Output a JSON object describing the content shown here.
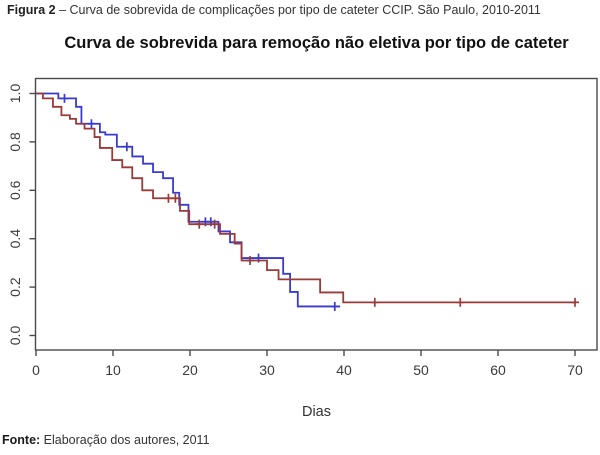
{
  "figure_caption": {
    "prefix": "Figura 2",
    "text": " – Curva de sobrevida de complicações por tipo de cateter CCIP. São Paulo, 2010-2011"
  },
  "footer": {
    "prefix": "Fonte:",
    "text": " Elaboração dos autores, 2011"
  },
  "chart_data": {
    "type": "line",
    "subtype": "kaplan-meier-step-survival",
    "title": "Curva de sobrevida para remoção não eletiva por tipo de cateter",
    "xlabel": "Dias",
    "ylabel": "",
    "xlim": [
      0,
      72.5
    ],
    "ylim": [
      0,
      1.0
    ],
    "x_ticks": [
      0,
      10,
      20,
      30,
      40,
      50,
      60,
      70
    ],
    "y_tick_labels": [
      "0.0",
      "0.2",
      "0.4",
      "0.6",
      "0.8",
      "1.0"
    ],
    "grid": false,
    "legend_position": "none",
    "axis_color": "#4a4a4a",
    "tick_label_color": "#3a3a3a",
    "series": [
      {
        "name": "cateter-curva-azul",
        "color": "#3a3ad0",
        "steps": [
          [
            0,
            1.0
          ],
          [
            2.9,
            0.98
          ],
          [
            5.2,
            0.945
          ],
          [
            5.9,
            0.875
          ],
          [
            8.3,
            0.84
          ],
          [
            9.0,
            0.83
          ],
          [
            10.5,
            0.78
          ],
          [
            12.5,
            0.74
          ],
          [
            13.9,
            0.71
          ],
          [
            15.2,
            0.675
          ],
          [
            16.5,
            0.65
          ],
          [
            17.8,
            0.59
          ],
          [
            18.6,
            0.54
          ],
          [
            19.8,
            0.47
          ],
          [
            23.7,
            0.43
          ],
          [
            25.2,
            0.385
          ],
          [
            26.7,
            0.32
          ],
          [
            32.1,
            0.255
          ],
          [
            33.0,
            0.18
          ],
          [
            34.0,
            0.12
          ],
          [
            39.5,
            0.12
          ]
        ],
        "censor_marks": [
          [
            3.7,
            0.98
          ],
          [
            7.2,
            0.875
          ],
          [
            11.8,
            0.78
          ],
          [
            22.0,
            0.47
          ],
          [
            22.7,
            0.47
          ],
          [
            28.9,
            0.32
          ],
          [
            38.8,
            0.12
          ]
        ]
      },
      {
        "name": "cateter-curva-vermelha",
        "color": "#9c3a38",
        "steps": [
          [
            0,
            1.0
          ],
          [
            0.9,
            0.98
          ],
          [
            2.2,
            0.945
          ],
          [
            3.3,
            0.91
          ],
          [
            4.4,
            0.895
          ],
          [
            5.2,
            0.875
          ],
          [
            6.3,
            0.855
          ],
          [
            7.6,
            0.82
          ],
          [
            8.3,
            0.775
          ],
          [
            9.9,
            0.725
          ],
          [
            11.2,
            0.695
          ],
          [
            12.5,
            0.65
          ],
          [
            13.8,
            0.6
          ],
          [
            15.2,
            0.567
          ],
          [
            18.7,
            0.515
          ],
          [
            19.9,
            0.46
          ],
          [
            23.9,
            0.42
          ],
          [
            25.8,
            0.38
          ],
          [
            26.7,
            0.31
          ],
          [
            30.0,
            0.27
          ],
          [
            31.5,
            0.232
          ],
          [
            36.9,
            0.178
          ],
          [
            39.9,
            0.137
          ],
          [
            70.0,
            0.137
          ]
        ],
        "censor_marks": [
          [
            17.2,
            0.567
          ],
          [
            18.1,
            0.567
          ],
          [
            21.2,
            0.46
          ],
          [
            23.2,
            0.46
          ],
          [
            27.8,
            0.31
          ],
          [
            44.0,
            0.137
          ],
          [
            55.1,
            0.137
          ],
          [
            70.0,
            0.137
          ]
        ]
      }
    ]
  }
}
